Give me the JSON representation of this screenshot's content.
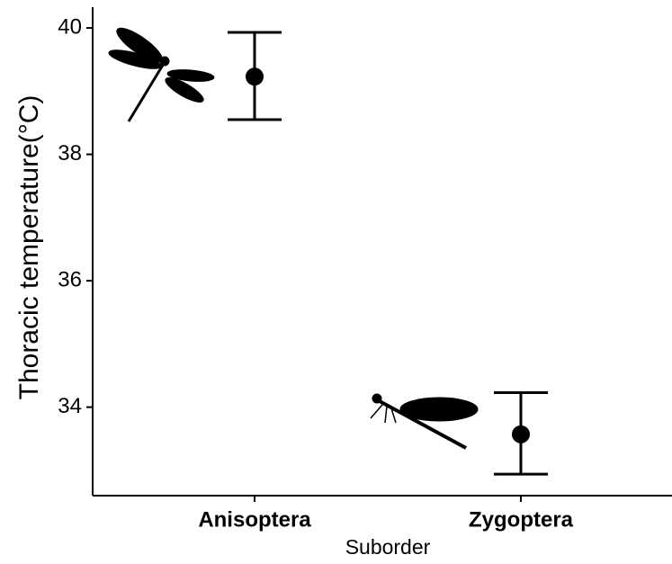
{
  "chart_data": {
    "type": "errorpoint",
    "x_label": "Suborder",
    "y_label": "Thoracic temperature(°C)",
    "categories": [
      "Anisoptera",
      "Zygoptera"
    ],
    "series": [
      {
        "color": "#000000",
        "values": [
          39.23,
          33.57
        ],
        "lower": [
          38.55,
          32.94
        ],
        "upper": [
          39.93,
          34.23
        ]
      }
    ],
    "ylim": [
      32.6,
      40.3
    ],
    "yticks": [
      34,
      36,
      38,
      40
    ],
    "grid": false
  }
}
